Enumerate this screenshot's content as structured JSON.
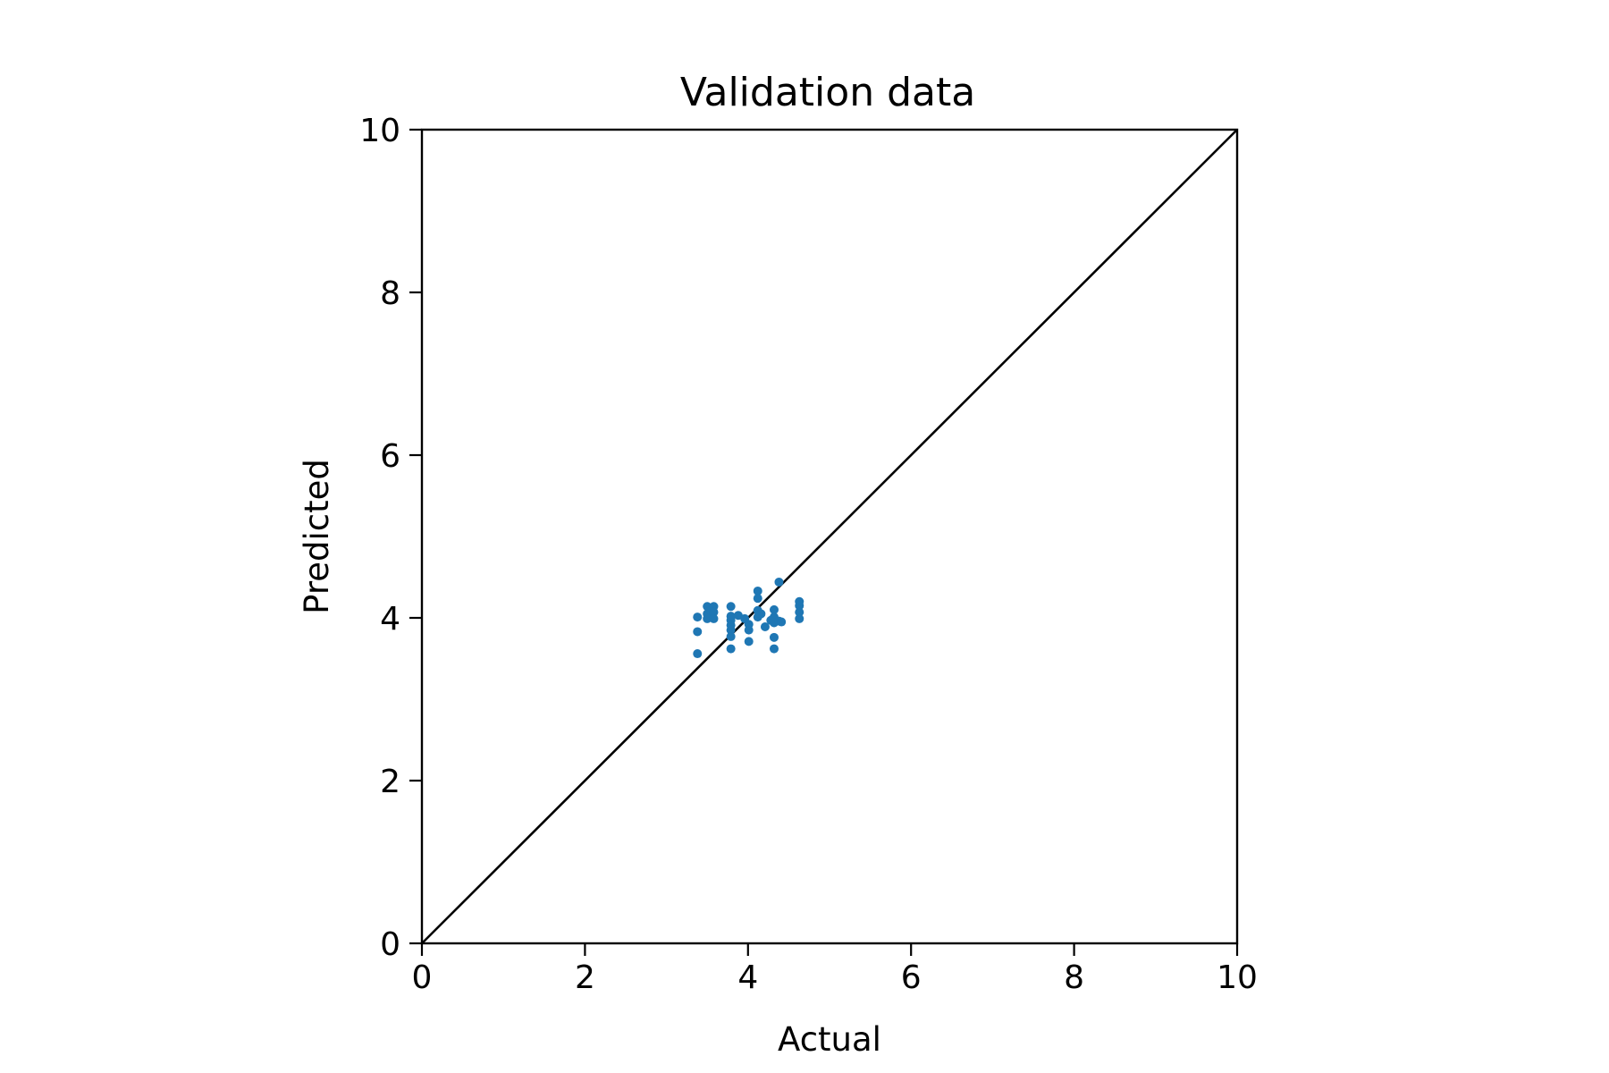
{
  "chart_data": {
    "type": "scatter",
    "title": "Validation data",
    "xlabel": "Actual",
    "ylabel": "Predicted",
    "xlim": [
      0,
      10
    ],
    "ylim": [
      0,
      10
    ],
    "xticks": [
      "0",
      "2",
      "4",
      "6",
      "8",
      "10"
    ],
    "yticks": [
      "0",
      "2",
      "4",
      "6",
      "8",
      "10"
    ],
    "grid": false,
    "reference_line": {
      "from": [
        0,
        0
      ],
      "to": [
        10,
        10
      ],
      "color": "#000000"
    },
    "series": [
      {
        "color": "#1f77b4",
        "points": [
          [
            3.38,
            4.01
          ],
          [
            3.38,
            3.83
          ],
          [
            3.38,
            3.56
          ],
          [
            3.5,
            4.14
          ],
          [
            3.5,
            4.05
          ],
          [
            3.5,
            3.99
          ],
          [
            3.54,
            4.09
          ],
          [
            3.58,
            4.14
          ],
          [
            3.58,
            4.07
          ],
          [
            3.58,
            3.99
          ],
          [
            3.79,
            4.14
          ],
          [
            3.79,
            4.02
          ],
          [
            3.79,
            3.97
          ],
          [
            3.79,
            3.91
          ],
          [
            3.79,
            3.85
          ],
          [
            3.79,
            3.77
          ],
          [
            3.79,
            3.62
          ],
          [
            3.88,
            4.03
          ],
          [
            3.96,
            3.99
          ],
          [
            4.01,
            3.92
          ],
          [
            4.01,
            3.85
          ],
          [
            4.01,
            3.71
          ],
          [
            4.12,
            4.33
          ],
          [
            4.12,
            4.24
          ],
          [
            4.12,
            4.09
          ],
          [
            4.12,
            4.01
          ],
          [
            4.16,
            4.05
          ],
          [
            4.21,
            3.89
          ],
          [
            4.28,
            3.97
          ],
          [
            4.32,
            4.1
          ],
          [
            4.32,
            4.01
          ],
          [
            4.32,
            3.94
          ],
          [
            4.32,
            3.76
          ],
          [
            4.32,
            3.62
          ],
          [
            4.38,
            4.44
          ],
          [
            4.38,
            3.96
          ],
          [
            4.41,
            3.95
          ],
          [
            4.63,
            4.2
          ],
          [
            4.63,
            4.15
          ],
          [
            4.63,
            4.07
          ],
          [
            4.63,
            3.99
          ]
        ]
      }
    ]
  }
}
